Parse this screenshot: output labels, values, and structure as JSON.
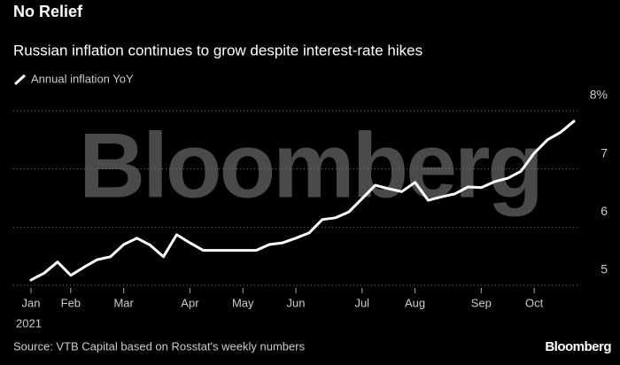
{
  "chart_data": {
    "type": "line",
    "title": "No Relief",
    "subtitle": "Russian inflation continues to grow despite interest-rate hikes",
    "watermark": "Bloomberg",
    "source": "Source: VTB Capital based on Rosstat's weekly numbers",
    "logo": "Bloomberg",
    "year_label": "2021",
    "categories": [
      "Jan",
      null,
      null,
      "Feb",
      null,
      null,
      null,
      "Mar",
      null,
      null,
      null,
      null,
      "Apr",
      null,
      null,
      null,
      "May",
      null,
      null,
      null,
      "Jun",
      null,
      null,
      null,
      null,
      "Jul",
      null,
      null,
      null,
      "Aug",
      null,
      null,
      null,
      null,
      "Sep",
      null,
      null,
      null,
      "Oct",
      null,
      null,
      null
    ],
    "series": [
      {
        "name": "Annual inflation YoY",
        "color": "#ffffff",
        "values": [
          5.09,
          5.21,
          5.4,
          5.17,
          5.31,
          5.44,
          5.49,
          5.7,
          5.81,
          5.69,
          5.49,
          5.87,
          5.73,
          5.6,
          5.6,
          5.6,
          5.6,
          5.6,
          5.7,
          5.73,
          5.81,
          5.9,
          6.13,
          6.16,
          6.26,
          6.49,
          6.72,
          6.66,
          6.61,
          6.77,
          6.46,
          6.52,
          6.57,
          6.69,
          6.68,
          6.78,
          6.84,
          6.96,
          7.27,
          7.5,
          7.63,
          7.82
        ]
      }
    ],
    "ylim": [
      5,
      8
    ],
    "yticks": [
      5,
      6,
      7,
      {
        "value": 8,
        "label": "8%"
      }
    ],
    "grid": true
  }
}
